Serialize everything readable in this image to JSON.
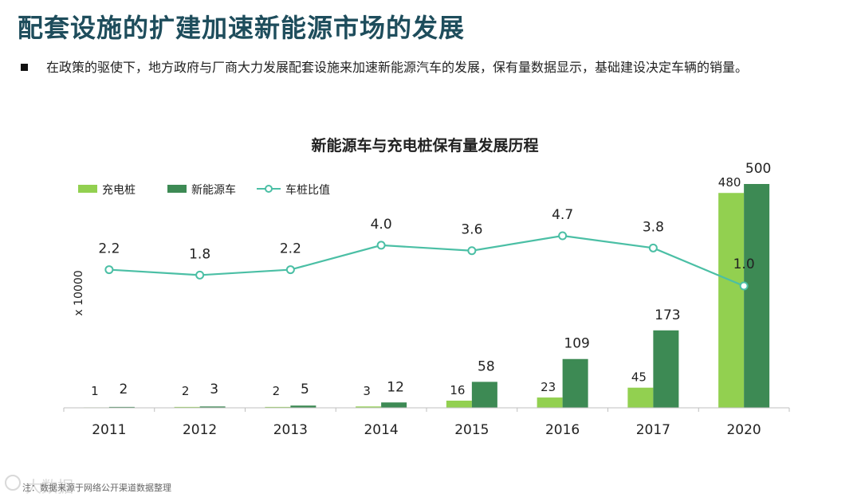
{
  "page": {
    "title": "配套设施的扩建加速新能源市场的发展",
    "bullet": "在政策的驱使下，地方政府与厂商大力发展配套设施来加速新能源汽车的发展，保有量数据显示，基础建设决定车辆的销量。",
    "footnote": "注：数据来源于网络公开渠道数据整理",
    "watermark": "大数据"
  },
  "colors": {
    "charging_pile": "#92d050",
    "nev": "#3d8a54",
    "ratio_line": "#4bbfa5",
    "title_text": "#1e4d5c"
  },
  "chart_data": {
    "type": "bar+line",
    "title": "新能源车与充电桩保有量发展历程",
    "ylabel": "x 10000",
    "categories": [
      "2011",
      "2012",
      "2013",
      "2014",
      "2015",
      "2016",
      "2017",
      "2020"
    ],
    "series": [
      {
        "name": "充电桩",
        "type": "bar",
        "values": [
          1,
          2,
          2,
          3,
          16,
          23,
          45,
          480
        ]
      },
      {
        "name": "新能源车",
        "type": "bar",
        "values": [
          2,
          3,
          5,
          12,
          58,
          109,
          173,
          500
        ]
      },
      {
        "name": "车桩比值",
        "type": "line",
        "values": [
          2.2,
          1.8,
          2.2,
          4.0,
          3.6,
          4.7,
          3.8,
          1.0
        ],
        "labels": [
          "2.2",
          "1.8",
          "2.2",
          "4.0",
          "3.6",
          "4.7",
          "3.8",
          "1.0"
        ]
      }
    ],
    "ylim": [
      0,
      520
    ],
    "legend_position": "top-left",
    "grid": false
  }
}
